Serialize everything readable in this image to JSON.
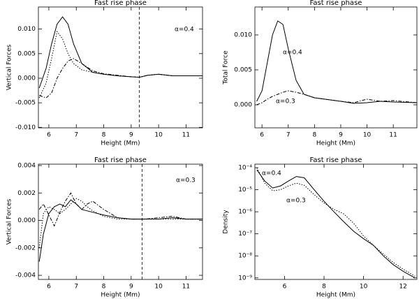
{
  "chart_data": [
    {
      "type": "line",
      "title": "Fast rise phase",
      "xlabel": "Height (Mm)",
      "ylabel": "Vertical Forces",
      "xlim": [
        5.62,
        11.6
      ],
      "xticks": [
        6,
        7,
        8,
        9,
        10,
        11
      ],
      "ylim": [
        -0.0101,
        0.0145
      ],
      "yticks": [
        {
          "value": -0.01,
          "label": "-0.010"
        },
        {
          "value": -0.005,
          "label": "-0.005"
        },
        {
          "value": 0,
          "label": "0.000"
        },
        {
          "value": 0.005,
          "label": "0.005"
        },
        {
          "value": 0.01,
          "label": "0.010"
        }
      ],
      "vline": 9.3,
      "annotations": [
        "α=0.4"
      ],
      "x": [
        5.65,
        5.9,
        6.1,
        6.3,
        6.5,
        6.7,
        6.9,
        7.2,
        7.6,
        8,
        8.5,
        9,
        9.3,
        9.6,
        10,
        10.5,
        11,
        11.6
      ],
      "series": [
        {
          "color": "#000000",
          "style": "solid",
          "values": [
            -0.002,
            0.002,
            0.007,
            0.011,
            0.0125,
            0.011,
            0.007,
            0.003,
            0.0012,
            0.0008,
            0.0005,
            0.0003,
            0.0002,
            0.0006,
            0.0008,
            0.0005,
            0.0005,
            0.0005
          ]
        },
        {
          "color": "#000000",
          "style": "dotted",
          "values": [
            -0.004,
            -0.001,
            0.004,
            0.0095,
            0.008,
            0.005,
            0.003,
            0.0017,
            0.0012,
            0.0008,
            0.0005,
            0.0003,
            0.0002,
            0.0006,
            0.0008,
            0.0005,
            0.0005,
            0.0005
          ]
        },
        {
          "color": "#000000",
          "style": "dashdot",
          "values": [
            -0.0035,
            -0.004,
            -0.003,
            0.0,
            0.002,
            0.0035,
            0.004,
            0.003,
            0.0015,
            0.0009,
            0.0006,
            0.0003,
            0.0002,
            0.0006,
            0.0008,
            0.0005,
            0.0005,
            0.0005
          ]
        }
      ]
    },
    {
      "type": "line",
      "title": "Fast rise phase",
      "xlabel": "Height (Mm)",
      "ylabel": "Total Force",
      "xlim": [
        5.73,
        11.9
      ],
      "xticks": [
        6,
        7,
        8,
        9,
        10,
        11
      ],
      "ylim": [
        -0.0033,
        0.014
      ],
      "yticks": [
        {
          "value": 0,
          "label": "0.000"
        },
        {
          "value": 0.005,
          "label": "0.005"
        },
        {
          "value": 0.01,
          "label": "0.010"
        }
      ],
      "annotations": [
        "α=0.4",
        "α=0.3"
      ],
      "x": [
        5.8,
        6,
        6.2,
        6.4,
        6.6,
        6.8,
        7,
        7.3,
        7.6,
        8,
        9,
        9.5,
        10,
        10.5,
        11,
        11.9
      ],
      "series": [
        {
          "color": "#000000",
          "style": "solid",
          "values": [
            0.0005,
            0.002,
            0.006,
            0.01,
            0.012,
            0.0115,
            0.008,
            0.0035,
            0.0015,
            0.001,
            0.0005,
            0.0002,
            0.0003,
            0.0005,
            0.0004,
            0.0003
          ]
        },
        {
          "color": "#000000",
          "style": "dashdot",
          "values": [
            0.0,
            0.0003,
            0.0008,
            0.0012,
            0.0015,
            0.0018,
            0.002,
            0.0018,
            0.0015,
            0.001,
            0.0005,
            0.0003,
            0.0008,
            0.0005,
            0.0006,
            0.0003
          ]
        }
      ]
    },
    {
      "type": "line",
      "title": "Fast rise phase",
      "xlabel": "Height (Mm)",
      "ylabel": "Vertical Forces",
      "xlim": [
        5.62,
        11.6
      ],
      "xticks": [
        6,
        7,
        8,
        9,
        10,
        11
      ],
      "ylim": [
        -0.0043,
        0.0041
      ],
      "yticks": [
        {
          "value": -0.004,
          "label": "-0.004"
        },
        {
          "value": -0.002,
          "label": "-0.002"
        },
        {
          "value": 0,
          "label": "0.000"
        },
        {
          "value": 0.002,
          "label": "0.002"
        },
        {
          "value": 0.004,
          "label": "0.004"
        }
      ],
      "vline": 9.4,
      "annotations": [
        "α=0.3"
      ],
      "x": [
        5.65,
        5.8,
        6,
        6.2,
        6.4,
        6.6,
        6.8,
        7,
        7.2,
        7.4,
        7.6,
        8,
        8.5,
        9,
        9.5,
        10,
        10.5,
        11,
        11.6
      ],
      "series": [
        {
          "color": "#000000",
          "style": "solid",
          "values": [
            -0.003,
            -0.001,
            0.0005,
            0.001,
            0.0012,
            0.001,
            0.0015,
            0.0012,
            0.0008,
            0.0007,
            0.0006,
            0.0004,
            0.0002,
            0.0001,
            0.0001,
            0.0001,
            0.0002,
            0.0001,
            0.0001
          ]
        },
        {
          "color": "#000000",
          "style": "dotted",
          "values": [
            -0.002,
            0.0005,
            0.001,
            0.0008,
            0.0005,
            0.0008,
            0.0012,
            0.0016,
            0.0014,
            0.001,
            0.0007,
            0.0003,
            0.0001,
            0.0001,
            0.0001,
            0.0001,
            0.0001,
            0.0001,
            0.0001
          ]
        },
        {
          "color": "#000000",
          "style": "dashdot",
          "values": [
            0.0008,
            0.0012,
            0.0004,
            -0.0004,
            0.0006,
            0.0014,
            0.002,
            0.0012,
            0.0008,
            0.0012,
            0.0014,
            0.0008,
            0.0002,
            0.0001,
            0.0001,
            0.0002,
            0.0003,
            0.0001,
            0.0001
          ]
        }
      ]
    },
    {
      "type": "line",
      "title": "Fast rise phase",
      "xlabel": "Height (Mm)",
      "ylabel": "Density",
      "xlim": [
        4.5,
        12.7
      ],
      "xticks": [
        6,
        8,
        10,
        12
      ],
      "ylog": true,
      "ylim": [
        8.5e-10,
        0.000145
      ],
      "yticks": [
        {
          "value": 1e-09,
          "label": "10⁻⁹"
        },
        {
          "value": 1e-08,
          "label": "10⁻⁸"
        },
        {
          "value": 1e-07,
          "label": "10⁻⁷"
        },
        {
          "value": 1e-06,
          "label": "10⁻⁶"
        },
        {
          "value": 1e-05,
          "label": "10⁻⁵"
        },
        {
          "value": 0.0001,
          "label": "10⁻⁴"
        }
      ],
      "annotations": [
        "α=0.4",
        "α=0.3"
      ],
      "x": [
        4.6,
        5,
        5.4,
        5.8,
        6.2,
        6.6,
        7,
        7.5,
        8,
        8.5,
        9,
        9.5,
        10,
        10.5,
        11,
        11.5,
        12,
        12.6
      ],
      "series": [
        {
          "color": "#000000",
          "style": "solid",
          "values": [
            8e-05,
            2.5e-05,
            1.2e-05,
            1.5e-05,
            2.5e-05,
            4e-05,
            3.5e-05,
            1e-05,
            3e-06,
            1e-06,
            3.5e-07,
            1.3e-07,
            6e-08,
            3e-08,
            1e-08,
            4e-09,
            2e-09,
            1e-09
          ]
        },
        {
          "color": "#000000",
          "style": "dotted",
          "values": [
            0.0001,
            2e-05,
            9e-06,
            1e-05,
            1.5e-05,
            2e-05,
            1.6e-05,
            6e-06,
            2.5e-06,
            1.3e-06,
            8e-07,
            3e-07,
            8e-08,
            3e-08,
            1.2e-08,
            5e-09,
            2.5e-09,
            1.2e-09
          ]
        }
      ]
    }
  ]
}
